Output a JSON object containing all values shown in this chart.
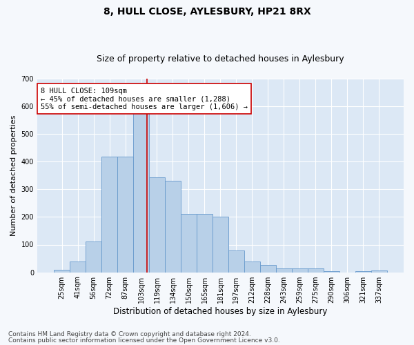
{
  "title": "8, HULL CLOSE, AYLESBURY, HP21 8RX",
  "subtitle": "Size of property relative to detached houses in Aylesbury",
  "xlabel": "Distribution of detached houses by size in Aylesbury",
  "ylabel": "Number of detached properties",
  "categories": [
    "25sqm",
    "41sqm",
    "56sqm",
    "72sqm",
    "87sqm",
    "103sqm",
    "119sqm",
    "134sqm",
    "150sqm",
    "165sqm",
    "181sqm",
    "197sqm",
    "212sqm",
    "228sqm",
    "243sqm",
    "259sqm",
    "275sqm",
    "290sqm",
    "306sqm",
    "321sqm",
    "337sqm"
  ],
  "values": [
    8,
    38,
    112,
    417,
    417,
    578,
    343,
    330,
    212,
    210,
    200,
    80,
    40,
    27,
    13,
    13,
    13,
    5,
    0,
    5,
    7
  ],
  "bar_color": "#b8d0e8",
  "bar_edge_color": "#6699cc",
  "property_line_color": "#cc0000",
  "annotation_text": "8 HULL CLOSE: 109sqm\n← 45% of detached houses are smaller (1,288)\n55% of semi-detached houses are larger (1,606) →",
  "annotation_box_color": "#ffffff",
  "annotation_box_edge_color": "#cc0000",
  "ylim": [
    0,
    700
  ],
  "yticks": [
    0,
    100,
    200,
    300,
    400,
    500,
    600,
    700
  ],
  "fig_bg_color": "#f5f8fc",
  "plot_bg_color": "#dce8f5",
  "footer_line1": "Contains HM Land Registry data © Crown copyright and database right 2024.",
  "footer_line2": "Contains public sector information licensed under the Open Government Licence v3.0.",
  "title_fontsize": 10,
  "subtitle_fontsize": 9,
  "xlabel_fontsize": 8.5,
  "ylabel_fontsize": 8,
  "tick_fontsize": 7,
  "annotation_fontsize": 7.5,
  "footer_fontsize": 6.5
}
